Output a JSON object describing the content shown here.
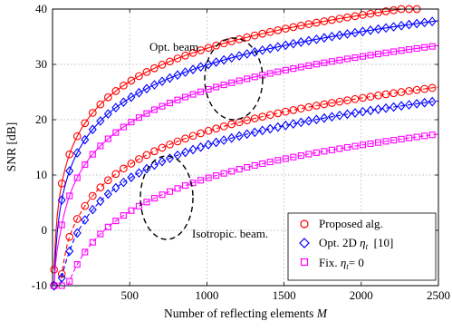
{
  "chart_data": {
    "type": "line",
    "xlabel": "Number of reflecting elements",
    "xlabel_var": "M",
    "ylabel": "SNR [dB]",
    "xlim": [
      0,
      2500
    ],
    "ylim": [
      -10,
      40
    ],
    "xticks": [
      "500",
      "1000",
      "1500",
      "2000",
      "2500"
    ],
    "yticks": [
      "-10",
      "0",
      "10",
      "20",
      "30",
      "40"
    ],
    "grid": true,
    "legend_position": "bottom-right",
    "legend": [
      {
        "label": "Proposed alg.",
        "color": "#ff0000",
        "marker": "circle"
      },
      {
        "label_prefix": "Opt. 2D ",
        "label_symbol": "η",
        "label_sub": "t",
        "label_suffix": "  [10]",
        "color": "#0000ff",
        "marker": "diamond"
      },
      {
        "label_prefix": "Fix. ",
        "label_symbol": "η",
        "label_sub": "t",
        "label_suffix": "= 0",
        "color": "#ff00ff",
        "marker": "square"
      }
    ],
    "annotations": [
      {
        "text": "Opt. beam."
      },
      {
        "text": "Isotropic. beam."
      }
    ],
    "series": [
      {
        "group": "optimized",
        "marker": "circle",
        "color": "#ff0000",
        "dash": "solid",
        "x": [
          10,
          50,
          100,
          250,
          500,
          1000,
          1500,
          2000,
          2500
        ],
        "y": [
          -7.1,
          6.9,
          12.9,
          20.9,
          26.9,
          32.9,
          36.4,
          38.9,
          40.9
        ]
      },
      {
        "group": "optimized",
        "marker": "diamond",
        "color": "#0000ff",
        "dash": "solid",
        "x": [
          10,
          50,
          100,
          250,
          500,
          1000,
          1500,
          2000,
          2500
        ],
        "y": [
          -10,
          3.9,
          9.9,
          17.9,
          23.9,
          29.9,
          33.4,
          35.9,
          37.9
        ]
      },
      {
        "group": "optimized",
        "marker": "square",
        "color": "#ff00ff",
        "dash": "solid",
        "x": [
          10,
          50,
          100,
          250,
          500,
          1000,
          1500,
          2000,
          2500
        ],
        "y": [
          -10,
          -0.6,
          5.4,
          13.4,
          19.4,
          25.4,
          28.9,
          31.4,
          33.4
        ]
      },
      {
        "group": "isotropic",
        "marker": "circle",
        "color": "#ff0000",
        "dash": "dashed",
        "x": [
          10,
          50,
          100,
          250,
          500,
          1000,
          1500,
          2000,
          2500
        ],
        "y": [
          -10,
          -10,
          -2.0,
          5.9,
          11.9,
          17.9,
          21.4,
          23.9,
          25.9
        ]
      },
      {
        "group": "isotropic",
        "marker": "diamond",
        "color": "#0000ff",
        "dash": "dashed",
        "x": [
          10,
          50,
          100,
          250,
          500,
          1000,
          1500,
          2000,
          2500
        ],
        "y": [
          -10,
          -10,
          -4.6,
          3.4,
          9.4,
          15.4,
          18.9,
          21.4,
          23.4
        ]
      },
      {
        "group": "isotropic",
        "marker": "square",
        "color": "#ff00ff",
        "dash": "dashed",
        "x": [
          10,
          50,
          100,
          250,
          500,
          1000,
          1500,
          2000,
          2500
        ],
        "y": [
          -10,
          -10,
          -10,
          -2.5,
          3.4,
          9.4,
          12.9,
          15.4,
          17.4
        ]
      }
    ]
  }
}
